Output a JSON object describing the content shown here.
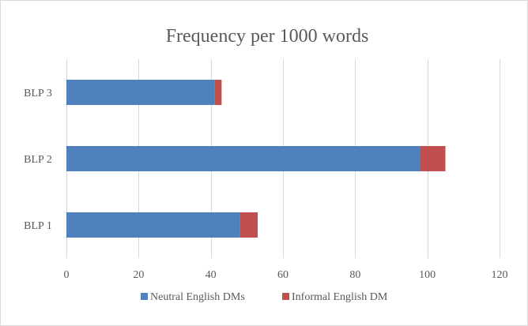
{
  "chart_data": {
    "type": "bar",
    "orientation": "horizontal",
    "stacked": true,
    "title": "Frequency per 1000 words",
    "categories": [
      "BLP 3",
      "BLP 2",
      "BLP 1"
    ],
    "series": [
      {
        "name": "Neutral English DMs",
        "values": [
          41,
          98,
          48
        ],
        "color": "#4f81bd"
      },
      {
        "name": "Informal English DM",
        "values": [
          2,
          7,
          5
        ],
        "color": "#c0504d"
      }
    ],
    "xlim": [
      0,
      120
    ],
    "xticks": [
      "0",
      "20",
      "40",
      "60",
      "80",
      "100",
      "120"
    ],
    "grid": true,
    "legend_position": "bottom"
  }
}
